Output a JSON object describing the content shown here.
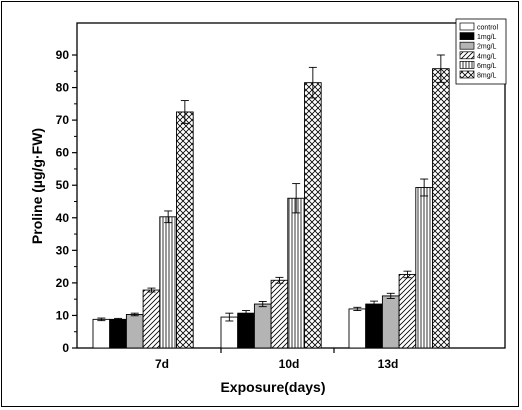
{
  "chart_data": {
    "type": "bar",
    "title": "",
    "xlabel": "Exposure(days)",
    "ylabel": "Proline (µg/g·FW)",
    "ylim": [
      0,
      90
    ],
    "yticks": [
      0,
      10,
      20,
      30,
      40,
      50,
      60,
      70,
      80,
      90
    ],
    "categories": [
      "7d",
      "10d",
      "13d"
    ],
    "grid": false,
    "legend_position": "top-right",
    "series": [
      {
        "name": "control",
        "values": [
          8.8,
          9.5,
          12.0
        ],
        "errors": [
          0.4,
          1.2,
          0.5
        ],
        "fill": "white"
      },
      {
        "name": "1mg/L",
        "values": [
          8.8,
          10.7,
          13.5
        ],
        "errors": [
          0.3,
          0.8,
          0.9
        ],
        "fill": "black"
      },
      {
        "name": "2mg/L",
        "values": [
          10.3,
          13.5,
          16.0
        ],
        "errors": [
          0.4,
          0.8,
          0.8
        ],
        "fill": "gray"
      },
      {
        "name": "4mg/L",
        "values": [
          17.8,
          20.8,
          22.6
        ],
        "errors": [
          0.6,
          0.9,
          1.0
        ],
        "fill": "diagonal"
      },
      {
        "name": "6mg/L",
        "values": [
          40.3,
          46.0,
          49.3
        ],
        "errors": [
          1.8,
          4.5,
          2.6
        ],
        "fill": "vertical"
      },
      {
        "name": "8mg/L",
        "values": [
          72.5,
          81.5,
          85.8
        ],
        "errors": [
          3.5,
          4.7,
          4.2
        ],
        "fill": "crosshatch"
      }
    ]
  },
  "colors": {
    "gray": "#b4b4b4",
    "ink": "#000000",
    "background": "#ffffff"
  }
}
